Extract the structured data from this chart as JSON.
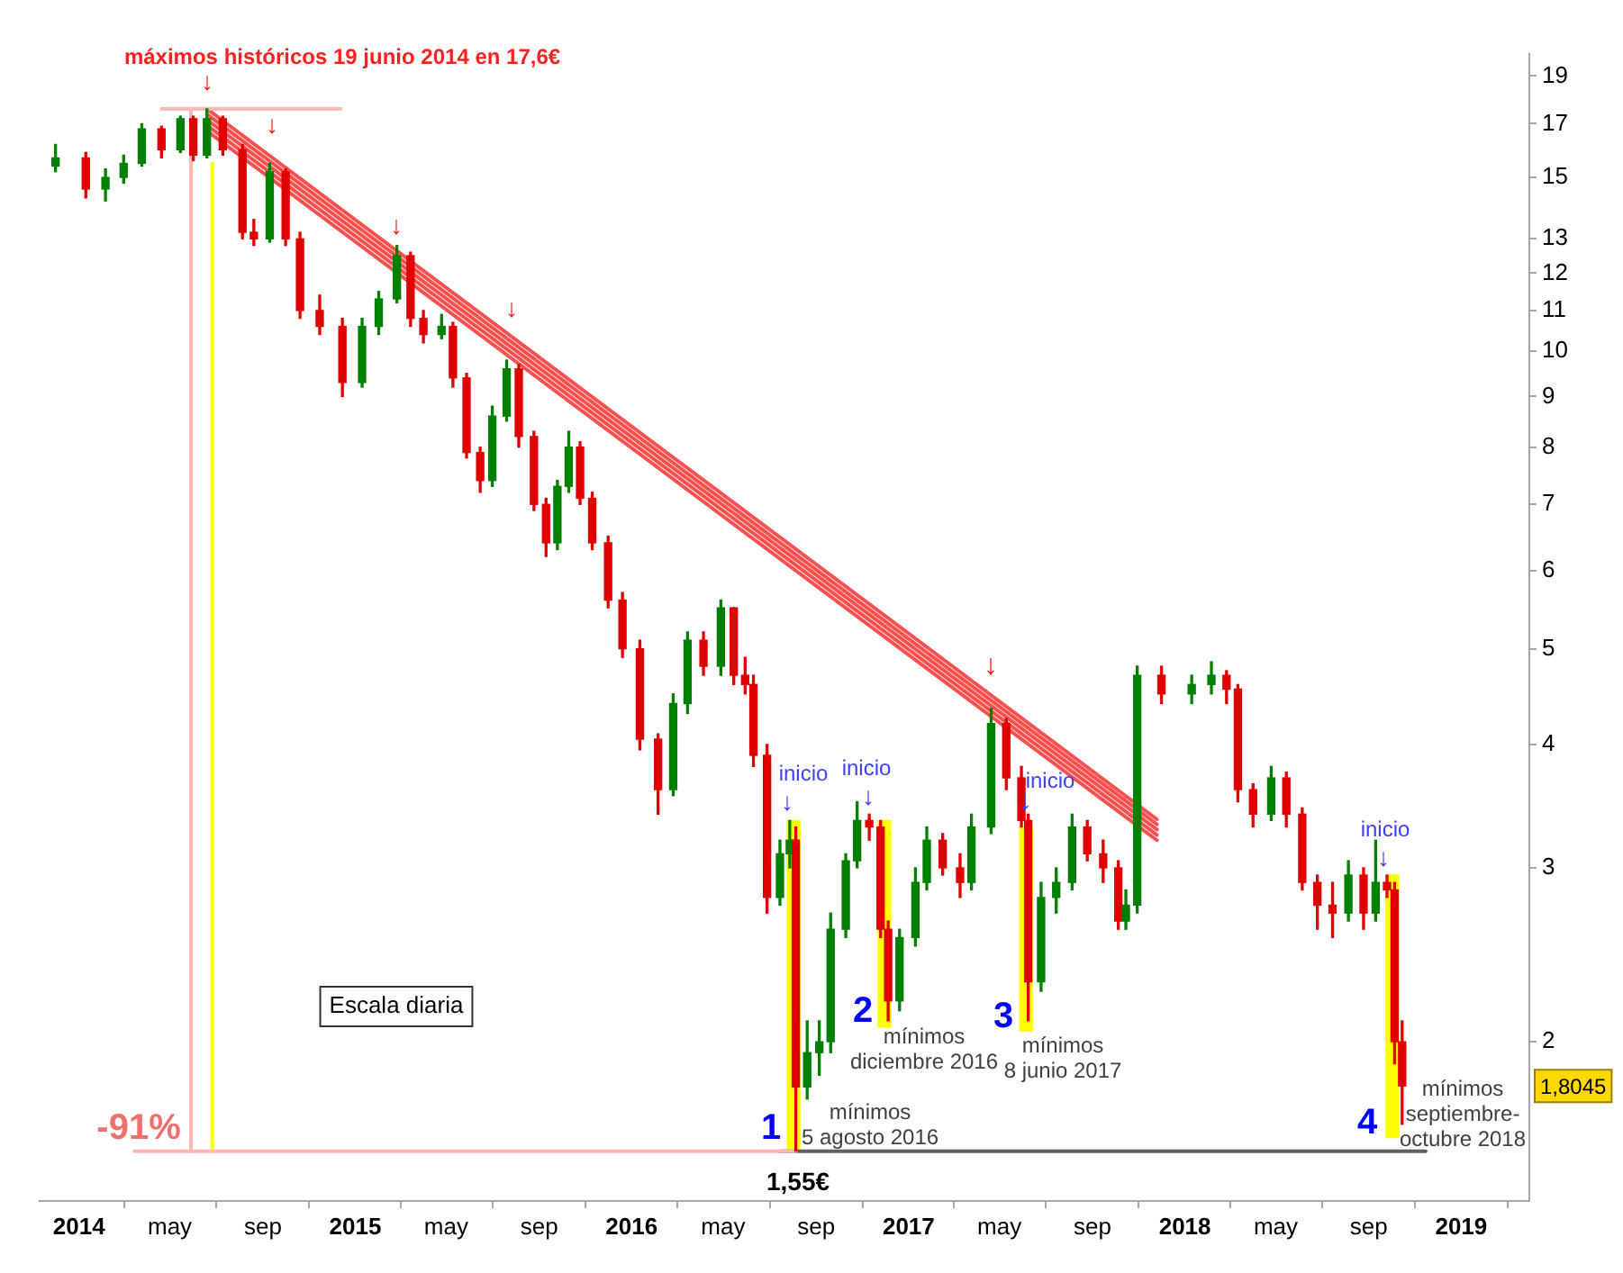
{
  "chart_data": {
    "type": "candlestick",
    "x": [
      "2013-12-01",
      "2014-01-10",
      "2014-02-05",
      "2014-03-01",
      "2014-03-25",
      "2014-04-20",
      "2014-05-15",
      "2014-06-01",
      "2014-06-19",
      "2014-07-10",
      "2014-08-05",
      "2014-08-20",
      "2014-09-10",
      "2014-10-01",
      "2014-10-20",
      "2014-11-15",
      "2014-12-15",
      "2015-01-10",
      "2015-02-01",
      "2015-02-25",
      "2015-03-15",
      "2015-04-01",
      "2015-04-25",
      "2015-05-10",
      "2015-05-28",
      "2015-06-15",
      "2015-07-01",
      "2015-07-20",
      "2015-08-05",
      "2015-08-25",
      "2015-09-10",
      "2015-09-25",
      "2015-10-10",
      "2015-10-25",
      "2015-11-10",
      "2015-12-01",
      "2015-12-20",
      "2016-01-12",
      "2016-02-05",
      "2016-02-25",
      "2016-03-15",
      "2016-04-05",
      "2016-04-28",
      "2016-05-15",
      "2016-05-30",
      "2016-06-10",
      "2016-06-28",
      "2016-07-15",
      "2016-07-28",
      "2016-08-05",
      "2016-08-20",
      "2016-09-05",
      "2016-09-20",
      "2016-10-10",
      "2016-10-25",
      "2016-11-10",
      "2016-11-25",
      "2016-12-05",
      "2016-12-20",
      "2017-01-10",
      "2017-01-25",
      "2017-02-15",
      "2017-03-10",
      "2017-03-25",
      "2017-04-20",
      "2017-05-10",
      "2017-05-30",
      "2017-06-08",
      "2017-06-25",
      "2017-07-15",
      "2017-08-05",
      "2017-08-25",
      "2017-09-15",
      "2017-10-05",
      "2017-10-15",
      "2017-10-30",
      "2017-12-01",
      "2018-01-10",
      "2018-02-05",
      "2018-02-25",
      "2018-03-12",
      "2018-04-01",
      "2018-04-25",
      "2018-05-15",
      "2018-06-05",
      "2018-06-25",
      "2018-07-15",
      "2018-08-05",
      "2018-08-25",
      "2018-09-10",
      "2018-09-25",
      "2018-10-05",
      "2018-10-15"
    ],
    "ohlc": [
      [
        15.4,
        16.2,
        15.2,
        15.7
      ],
      [
        15.7,
        15.9,
        14.3,
        14.6
      ],
      [
        14.6,
        15.3,
        14.2,
        15.0
      ],
      [
        15.0,
        15.8,
        14.8,
        15.5
      ],
      [
        15.5,
        17.0,
        15.4,
        16.8
      ],
      [
        16.8,
        16.9,
        15.7,
        16.0
      ],
      [
        16.0,
        17.3,
        15.9,
        17.2
      ],
      [
        17.2,
        17.3,
        15.6,
        15.8
      ],
      [
        15.8,
        17.6,
        15.7,
        17.2
      ],
      [
        17.2,
        17.3,
        15.8,
        16.0
      ],
      [
        16.0,
        16.2,
        13.0,
        13.2
      ],
      [
        13.2,
        13.6,
        12.8,
        13.0
      ],
      [
        13.0,
        15.5,
        12.9,
        15.2
      ],
      [
        15.2,
        15.3,
        12.8,
        13.0
      ],
      [
        13.0,
        13.2,
        10.8,
        11.0
      ],
      [
        11.0,
        11.4,
        10.4,
        10.6
      ],
      [
        10.6,
        10.8,
        9.0,
        9.3
      ],
      [
        9.3,
        10.8,
        9.2,
        10.6
      ],
      [
        10.6,
        11.5,
        10.4,
        11.3
      ],
      [
        11.3,
        12.8,
        11.2,
        12.5
      ],
      [
        12.5,
        12.6,
        10.6,
        10.8
      ],
      [
        10.8,
        11.0,
        10.2,
        10.4
      ],
      [
        10.4,
        10.9,
        10.3,
        10.6
      ],
      [
        10.6,
        10.7,
        9.2,
        9.4
      ],
      [
        9.4,
        9.5,
        7.8,
        7.9
      ],
      [
        7.9,
        8.0,
        7.2,
        7.4
      ],
      [
        7.4,
        8.8,
        7.3,
        8.6
      ],
      [
        8.6,
        9.8,
        8.5,
        9.6
      ],
      [
        9.6,
        9.7,
        8.0,
        8.2
      ],
      [
        8.2,
        8.3,
        6.9,
        7.0
      ],
      [
        7.0,
        7.1,
        6.2,
        6.4
      ],
      [
        6.4,
        7.4,
        6.3,
        7.3
      ],
      [
        7.3,
        8.3,
        7.2,
        8.0
      ],
      [
        8.0,
        8.1,
        7.0,
        7.1
      ],
      [
        7.1,
        7.2,
        6.3,
        6.4
      ],
      [
        6.4,
        6.5,
        5.5,
        5.6
      ],
      [
        5.6,
        5.7,
        4.9,
        5.0
      ],
      [
        5.0,
        5.1,
        3.95,
        4.05
      ],
      [
        4.05,
        4.1,
        3.4,
        3.6
      ],
      [
        3.6,
        4.5,
        3.55,
        4.4
      ],
      [
        4.4,
        5.2,
        4.3,
        5.1
      ],
      [
        5.1,
        5.2,
        4.7,
        4.8
      ],
      [
        4.8,
        5.6,
        4.7,
        5.5
      ],
      [
        5.5,
        5.5,
        4.6,
        4.7
      ],
      [
        4.7,
        4.9,
        4.5,
        4.6
      ],
      [
        4.6,
        4.7,
        3.8,
        3.9
      ],
      [
        3.9,
        4.0,
        2.7,
        2.8
      ],
      [
        2.8,
        3.2,
        2.75,
        3.1
      ],
      [
        3.1,
        3.35,
        3.0,
        3.2
      ],
      [
        3.2,
        3.3,
        1.55,
        1.8
      ],
      [
        1.8,
        2.1,
        1.75,
        1.95
      ],
      [
        1.95,
        2.1,
        1.85,
        2.0
      ],
      [
        2.0,
        2.7,
        1.95,
        2.6
      ],
      [
        2.6,
        3.1,
        2.55,
        3.05
      ],
      [
        3.05,
        3.5,
        3.0,
        3.35
      ],
      [
        3.35,
        3.4,
        3.2,
        3.3
      ],
      [
        3.3,
        3.35,
        2.55,
        2.6
      ],
      [
        2.6,
        2.65,
        2.1,
        2.2
      ],
      [
        2.2,
        2.6,
        2.15,
        2.55
      ],
      [
        2.55,
        3.0,
        2.5,
        2.9
      ],
      [
        2.9,
        3.3,
        2.85,
        3.2
      ],
      [
        3.2,
        3.25,
        2.95,
        3.0
      ],
      [
        3.0,
        3.1,
        2.8,
        2.9
      ],
      [
        2.9,
        3.4,
        2.85,
        3.3
      ],
      [
        3.3,
        4.35,
        3.25,
        4.2
      ],
      [
        4.2,
        4.25,
        3.6,
        3.7
      ],
      [
        3.7,
        3.8,
        3.3,
        3.35
      ],
      [
        3.35,
        3.4,
        2.1,
        2.3
      ],
      [
        2.3,
        2.9,
        2.25,
        2.8
      ],
      [
        2.8,
        3.0,
        2.7,
        2.9
      ],
      [
        2.9,
        3.4,
        2.85,
        3.3
      ],
      [
        3.3,
        3.35,
        3.05,
        3.1
      ],
      [
        3.1,
        3.2,
        2.9,
        3.0
      ],
      [
        3.0,
        3.05,
        2.6,
        2.65
      ],
      [
        2.65,
        2.85,
        2.6,
        2.75
      ],
      [
        2.75,
        4.8,
        2.7,
        4.7
      ],
      [
        4.7,
        4.8,
        4.4,
        4.5
      ],
      [
        4.5,
        4.7,
        4.4,
        4.6
      ],
      [
        4.6,
        4.85,
        4.5,
        4.7
      ],
      [
        4.7,
        4.75,
        4.4,
        4.55
      ],
      [
        4.55,
        4.6,
        3.5,
        3.6
      ],
      [
        3.6,
        3.65,
        3.3,
        3.4
      ],
      [
        3.4,
        3.8,
        3.35,
        3.7
      ],
      [
        3.7,
        3.75,
        3.3,
        3.4
      ],
      [
        3.4,
        3.45,
        2.85,
        2.9
      ],
      [
        2.9,
        2.95,
        2.6,
        2.75
      ],
      [
        2.75,
        2.9,
        2.55,
        2.7
      ],
      [
        2.7,
        3.05,
        2.65,
        2.95
      ],
      [
        2.95,
        3.0,
        2.6,
        2.7
      ],
      [
        2.7,
        3.2,
        2.65,
        2.9
      ],
      [
        2.9,
        2.95,
        2.8,
        2.85
      ],
      [
        2.85,
        2.9,
        1.9,
        2.0
      ],
      [
        2.0,
        2.1,
        1.65,
        1.8045
      ]
    ],
    "series": [
      {
        "type": "bar",
        "color": "#ffff00",
        "x": [
          "2016-08-02",
          "2016-11-30",
          "2017-06-05",
          "2018-10-02"
        ],
        "base": [
          1.55,
          2.07,
          2.05,
          1.6
        ],
        "values": [
          1.8,
          1.28,
          1.25,
          1.35
        ]
      },
      {
        "type": "line",
        "color": "#ffb6b6",
        "x": [
          "2014-05-29",
          "2014-05-29"
        ],
        "values": [
          17.6,
          1.55
        ]
      },
      {
        "type": "line",
        "color": "#ffb6b6",
        "x": [
          "2014-04-20",
          "2014-12-13"
        ],
        "values": [
          17.6,
          17.6
        ]
      },
      {
        "type": "line",
        "color": "#ffb6b6",
        "x": [
          "2014-03-15",
          "2016-08-05"
        ],
        "values": [
          1.55,
          1.55
        ]
      },
      {
        "type": "line",
        "color": "#ffff00",
        "x": [
          "2014-06-26",
          "2014-06-26"
        ],
        "values": [
          15.5,
          1.55
        ]
      },
      {
        "type": "line",
        "color": "#606060",
        "x": [
          "2016-07-15",
          "2018-11-15"
        ],
        "values": [
          1.55,
          1.55
        ]
      },
      {
        "type": "line",
        "color": "#ff5050",
        "x": [
          "2014-06-19",
          "2017-11-25"
        ],
        "values": [
          17.6,
          3.36
        ]
      },
      {
        "type": "line",
        "color": "#ff5050",
        "x": [
          "2014-06-19",
          "2017-11-25"
        ],
        "values": [
          17.38,
          3.32
        ]
      },
      {
        "type": "line",
        "color": "#ff5050",
        "x": [
          "2014-06-19",
          "2017-11-25"
        ],
        "values": [
          17.16,
          3.28
        ]
      },
      {
        "type": "line",
        "color": "#ff5050",
        "x": [
          "2014-06-19",
          "2017-11-25"
        ],
        "values": [
          16.94,
          3.24
        ]
      },
      {
        "type": "line",
        "color": "#ff5050",
        "x": [
          "2014-06-19",
          "2017-11-25"
        ],
        "values": [
          16.72,
          3.2
        ]
      }
    ],
    "annotations": [
      "máximos históricos 19 junio 2014 en 17,6€",
      "↓",
      "↓",
      "↓",
      "↓",
      "↓",
      "inicio",
      "↓",
      "inicio",
      "↓",
      "inicio",
      "↓",
      "inicio",
      "↓",
      "1",
      "2",
      "3",
      "4",
      "mínimos\n5 agosto 2016",
      "mínimos\ndiciembre 2016",
      "mínimos\n8 junio 2017",
      "mínimos\nseptiembre-\noctubre 2018",
      "-91%",
      "1,55€",
      "1,8045",
      "Escala diaria"
    ],
    "xlim": [
      "2013-11-10",
      "2019-04-01"
    ],
    "xticks": [
      {
        "value": "2014",
        "label": "2014"
      },
      {
        "value": "2014-05",
        "label": "may"
      },
      {
        "value": "2014-09",
        "label": "sep"
      },
      {
        "value": "2015",
        "label": "2015"
      },
      {
        "value": "2015-05",
        "label": "may"
      },
      {
        "value": "2015-09",
        "label": "sep"
      },
      {
        "value": "2016",
        "label": "2016"
      },
      {
        "value": "2016-05",
        "label": "may"
      },
      {
        "value": "2016-09",
        "label": "sep"
      },
      {
        "value": "2017",
        "label": "2017"
      },
      {
        "value": "2017-05",
        "label": "may"
      },
      {
        "value": "2017-09",
        "label": "sep"
      },
      {
        "value": "2018",
        "label": "2018"
      },
      {
        "value": "2018-05",
        "label": "may"
      },
      {
        "value": "2018-09",
        "label": "sep"
      },
      {
        "value": "2019",
        "label": "2019"
      }
    ],
    "ylim": [
      1.38,
      20
    ],
    "yticks": [
      2,
      3,
      4,
      5,
      6,
      7,
      8,
      9,
      10,
      11,
      12,
      13,
      15,
      17,
      19
    ],
    "log": true
  }
}
